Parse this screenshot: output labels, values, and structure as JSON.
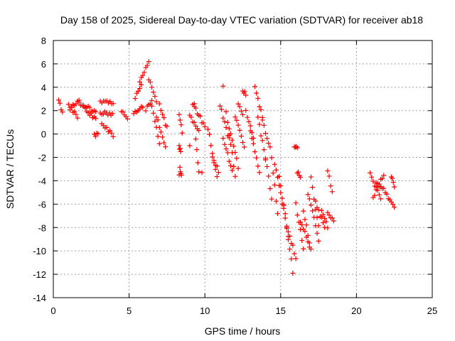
{
  "chart_data": {
    "type": "scatter",
    "title": "Day 158 of 2025, Sidereal Day-to-day VTEC variation (SDTVAR) for receiver ab18",
    "xlabel": "GPS time / hours",
    "ylabel": "SDTVAR / TECUs",
    "xlim": [
      0,
      25
    ],
    "ylim": [
      -14,
      8
    ],
    "xticks": [
      0,
      5,
      10,
      15,
      20,
      25
    ],
    "yticks": [
      -14,
      -12,
      -10,
      -8,
      -6,
      -4,
      -2,
      0,
      2,
      4,
      6,
      8
    ],
    "grid": true,
    "marker": "+",
    "color": "#ff0000",
    "segments": [
      {
        "x0": 0.35,
        "x1": 0.6,
        "y0": 2.9,
        "y1": 1.8
      },
      {
        "x0": 1.0,
        "x1": 1.6,
        "y0": 2.6,
        "y1": 1.4
      },
      {
        "x0": 1.1,
        "x1": 1.7,
        "y0": 2.2,
        "y1": 2.9
      },
      {
        "x0": 1.7,
        "x1": 2.8,
        "y0": 2.6,
        "y1": 1.9
      },
      {
        "x0": 2.0,
        "x1": 2.8,
        "y0": 2.2,
        "y1": 1.3
      },
      {
        "x0": 2.7,
        "x1": 2.95,
        "y0": 0.0,
        "y1": -0.1
      },
      {
        "x0": 3.1,
        "x1": 3.95,
        "y0": 2.8,
        "y1": 2.6
      },
      {
        "x0": 3.1,
        "x1": 3.9,
        "y0": 1.8,
        "y1": 1.7
      },
      {
        "x0": 3.2,
        "x1": 3.95,
        "y0": 1.0,
        "y1": -0.2
      },
      {
        "x0": 4.5,
        "x1": 4.9,
        "y0": 1.9,
        "y1": 1.4
      },
      {
        "x0": 5.3,
        "x1": 5.9,
        "y0": 1.7,
        "y1": 2.4
      },
      {
        "x0": 5.7,
        "x1": 6.3,
        "y0": 4.5,
        "y1": 6.2
      },
      {
        "x0": 5.4,
        "x1": 5.8,
        "y0": 3.2,
        "y1": 4.2
      },
      {
        "x0": 6.1,
        "x1": 6.5,
        "y0": 2.0,
        "y1": 3.0
      },
      {
        "x0": 6.3,
        "x1": 6.8,
        "y0": 4.8,
        "y1": 2.8
      },
      {
        "x0": 6.5,
        "x1": 7.0,
        "y0": 2.5,
        "y1": -0.8
      },
      {
        "x0": 6.8,
        "x1": 7.4,
        "y0": 1.5,
        "y1": -1.2
      },
      {
        "x0": 7.0,
        "x1": 7.5,
        "y0": 2.5,
        "y1": 0.5
      },
      {
        "x0": 8.3,
        "x1": 8.5,
        "y0": 1.8,
        "y1": 0.2
      },
      {
        "x0": 8.35,
        "x1": 8.45,
        "y0": -2.8,
        "y1": -3.6
      },
      {
        "x0": 8.3,
        "x1": 8.4,
        "y0": -1.0,
        "y1": -1.5
      },
      {
        "x0": 9.0,
        "x1": 9.6,
        "y0": 1.5,
        "y1": 0.2
      },
      {
        "x0": 9.2,
        "x1": 9.5,
        "y0": 2.6,
        "y1": 1.8
      },
      {
        "x0": 9.4,
        "x1": 9.6,
        "y0": -0.5,
        "y1": -3.2
      },
      {
        "x0": 9.6,
        "x1": 10.0,
        "y0": 1.6,
        "y1": 0.6
      },
      {
        "x0": 10.2,
        "x1": 10.8,
        "y0": 0.5,
        "y1": -3.6
      },
      {
        "x0": 10.5,
        "x1": 10.9,
        "y0": -2.0,
        "y1": -3.2
      },
      {
        "x0": 11.0,
        "x1": 11.6,
        "y0": 2.5,
        "y1": -0.5
      },
      {
        "x0": 11.2,
        "x1": 11.8,
        "y0": -0.5,
        "y1": -3.0
      },
      {
        "x0": 11.4,
        "x1": 12.0,
        "y0": 1.8,
        "y1": -3.5
      },
      {
        "x0": 11.6,
        "x1": 12.2,
        "y0": 0.6,
        "y1": -2.8
      },
      {
        "x0": 12.0,
        "x1": 12.6,
        "y0": 1.5,
        "y1": -1.0
      },
      {
        "x0": 12.2,
        "x1": 12.5,
        "y0": 2.6,
        "y1": 1.8
      },
      {
        "x0": 12.5,
        "x1": 12.7,
        "y0": 3.7,
        "y1": 3.4
      },
      {
        "x0": 12.7,
        "x1": 13.2,
        "y0": 2.0,
        "y1": -0.3
      },
      {
        "x0": 13.0,
        "x1": 13.6,
        "y0": 0.4,
        "y1": -3.2
      },
      {
        "x0": 13.3,
        "x1": 13.8,
        "y0": 3.9,
        "y1": 1.5
      },
      {
        "x0": 13.5,
        "x1": 14.0,
        "y0": 1.5,
        "y1": -2.2
      },
      {
        "x0": 13.8,
        "x1": 14.2,
        "y0": 1.2,
        "y1": -0.8
      },
      {
        "x0": 14.0,
        "x1": 14.4,
        "y0": -2.0,
        "y1": -5.5
      },
      {
        "x0": 14.3,
        "x1": 14.8,
        "y0": -1.0,
        "y1": -6.8
      },
      {
        "x0": 14.6,
        "x1": 15.2,
        "y0": -2.5,
        "y1": -6.5
      },
      {
        "x0": 14.9,
        "x1": 15.5,
        "y0": -3.5,
        "y1": -9.0
      },
      {
        "x0": 15.2,
        "x1": 15.8,
        "y0": -6.0,
        "y1": -11.8
      },
      {
        "x0": 15.4,
        "x1": 16.0,
        "y0": -8.0,
        "y1": -10.5
      },
      {
        "x0": 15.9,
        "x1": 16.1,
        "y0": -1.0,
        "y1": -1.3
      },
      {
        "x0": 16.1,
        "x1": 16.3,
        "y0": -3.3,
        "y1": -3.6
      },
      {
        "x0": 16.0,
        "x1": 16.5,
        "y0": -6.0,
        "y1": -9.8
      },
      {
        "x0": 16.3,
        "x1": 16.9,
        "y0": -7.5,
        "y1": -9.5
      },
      {
        "x0": 16.5,
        "x1": 17.0,
        "y0": -6.5,
        "y1": -10.0
      },
      {
        "x0": 16.8,
        "x1": 17.5,
        "y0": -5.0,
        "y1": -9.0
      },
      {
        "x0": 17.0,
        "x1": 17.5,
        "y0": -3.8,
        "y1": -8.0
      },
      {
        "x0": 17.3,
        "x1": 17.9,
        "y0": -5.8,
        "y1": -8.0
      },
      {
        "x0": 17.7,
        "x1": 18.1,
        "y0": -6.5,
        "y1": -8.0
      },
      {
        "x0": 18.1,
        "x1": 18.4,
        "y0": -3.2,
        "y1": -4.8
      },
      {
        "x0": 18.1,
        "x1": 18.5,
        "y0": -6.8,
        "y1": -7.5
      },
      {
        "x0": 20.9,
        "x1": 21.6,
        "y0": -3.5,
        "y1": -5.5
      },
      {
        "x0": 21.1,
        "x1": 21.8,
        "y0": -5.5,
        "y1": -3.4
      },
      {
        "x0": 21.3,
        "x1": 22.0,
        "y0": -4.2,
        "y1": -5.0
      },
      {
        "x0": 22.1,
        "x1": 22.5,
        "y0": -5.5,
        "y1": -6.4
      },
      {
        "x0": 22.3,
        "x1": 22.5,
        "y0": -3.6,
        "y1": -4.6
      }
    ],
    "isolated_points": [
      [
        9.0,
        -1.0
      ],
      [
        9.3,
        2.6
      ],
      [
        9.8,
        -3.3
      ],
      [
        11.2,
        4.1
      ],
      [
        8.3,
        -3.5
      ]
    ]
  }
}
